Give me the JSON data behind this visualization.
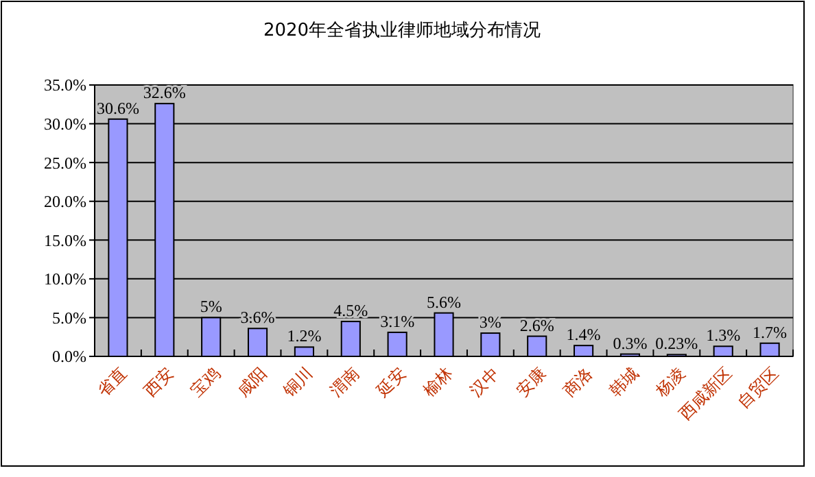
{
  "chart_data": {
    "type": "bar",
    "title": "2020年全省执业律师地域分布情况",
    "categories": [
      "省直",
      "西安",
      "宝鸡",
      "咸阳",
      "铜川",
      "渭南",
      "延安",
      "榆林",
      "汉中",
      "安康",
      "商洛",
      "韩城",
      "杨凌",
      "西咸新区",
      "自贸区"
    ],
    "values": [
      30.6,
      32.6,
      5,
      3.6,
      1.2,
      4.5,
      3.1,
      5.6,
      3,
      2.6,
      1.4,
      0.3,
      0.23,
      1.3,
      1.7
    ],
    "value_labels": [
      "30.6%",
      "32.6%",
      "5%",
      "3.6%",
      "1.2%",
      "4.5%",
      "3.1%",
      "5.6%",
      "3%",
      "2.6%",
      "1.4%",
      "0.3%",
      "0.23%",
      "1.3%",
      "1.7%"
    ],
    "color": "#9999ff",
    "ylim": [
      0,
      35
    ],
    "yticks": [
      {
        "value": 0,
        "label": "0.0%"
      },
      {
        "value": 5,
        "label": "5.0%"
      },
      {
        "value": 10,
        "label": "10.0%"
      },
      {
        "value": 15,
        "label": "15.0%"
      },
      {
        "value": 20,
        "label": "20.0%"
      },
      {
        "value": 25,
        "label": "25.0%"
      },
      {
        "value": 30,
        "label": "30.0%"
      },
      {
        "value": 35,
        "label": "35.0%"
      }
    ],
    "grid": "y"
  }
}
